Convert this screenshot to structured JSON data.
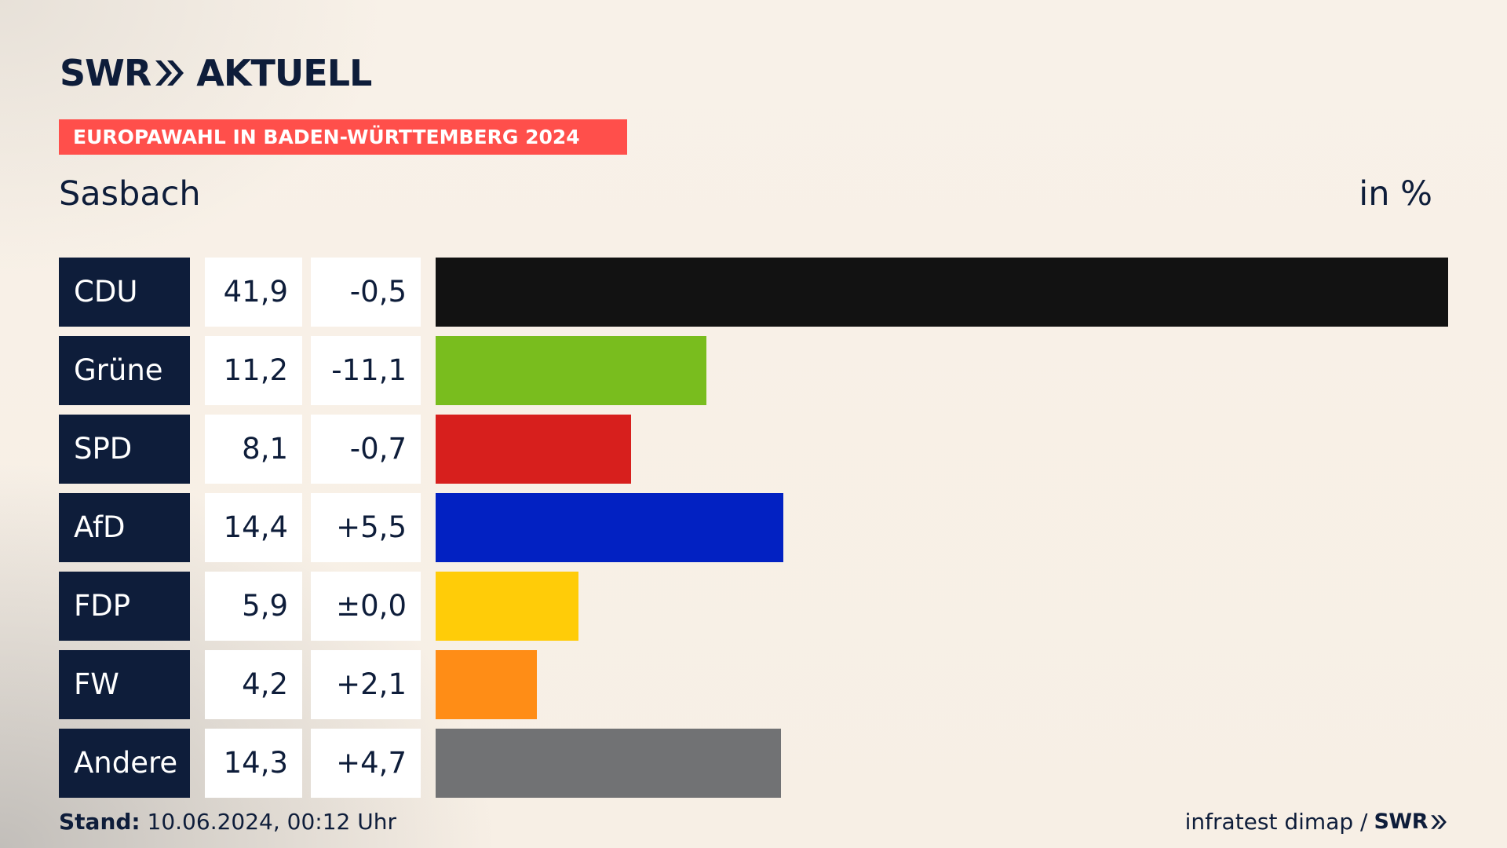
{
  "header": {
    "logo_left": "SWR",
    "logo_right": "AKTUELL",
    "kicker": "EUROPAWAHL IN BADEN-WÜRTTEMBERG 2024",
    "region": "Sasbach",
    "unit": "in %"
  },
  "colors": {
    "navy": "#0e1d3a",
    "kicker_red": "#ff4f4b",
    "CDU": "#121212",
    "Grüne": "#79bd1e",
    "SPD": "#d71f1d",
    "AfD": "#0221c2",
    "FDP": "#ffcc08",
    "FW": "#ff8d16",
    "Andere": "#717274"
  },
  "chart_data": {
    "type": "bar",
    "orientation": "horizontal",
    "categories": [
      "CDU",
      "Grüne",
      "SPD",
      "AfD",
      "FDP",
      "FW",
      "Andere"
    ],
    "values": [
      41.9,
      11.2,
      8.1,
      14.4,
      5.9,
      4.2,
      14.3
    ],
    "value_labels": [
      "41,9",
      "11,2",
      "8,1",
      "14,4",
      "5,9",
      "4,2",
      "14,3"
    ],
    "diff_labels": [
      "-0,5",
      "-11,1",
      "-0,7",
      "+5,5",
      "±0,0",
      "+2,1",
      "+4,7"
    ],
    "diffs": [
      -0.5,
      -11.1,
      -0.7,
      5.5,
      0.0,
      2.1,
      4.7
    ],
    "colors": [
      "#121212",
      "#79bd1e",
      "#d71f1d",
      "#0221c2",
      "#ffcc08",
      "#ff8d16",
      "#717274"
    ],
    "xlim": [
      0,
      41.9
    ],
    "grid": false,
    "legend": "none"
  },
  "footer": {
    "stand_label": "Stand:",
    "stand_value": "10.06.2024, 00:12 Uhr",
    "source": "infratest dimap /",
    "source_logo": "SWR"
  }
}
